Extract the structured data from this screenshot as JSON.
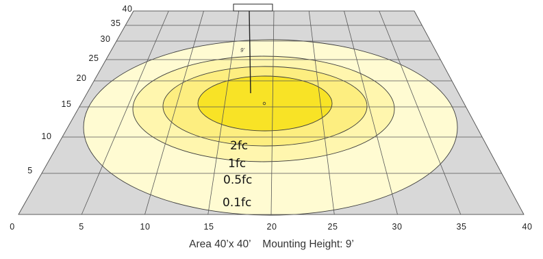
{
  "caption": {
    "area": "Area 40’x 40’",
    "mounting": "Mounting Height: 9’"
  },
  "x_ticks": [
    "0",
    "5",
    "10",
    "15",
    "20",
    "25",
    "30",
    "35",
    "40"
  ],
  "y_ticks": [
    "5",
    "10",
    "15",
    "20",
    "25",
    "30",
    "35",
    "40"
  ],
  "contours": [
    {
      "label": "0.1fc",
      "color": "#fffbd2"
    },
    {
      "label": "0.5fc",
      "color": "#fff6ae"
    },
    {
      "label": "1fc",
      "color": "#fdee80"
    },
    {
      "label": "2fc",
      "color": "#f8e326"
    }
  ],
  "fixture": {
    "height_label": "9’"
  },
  "colors": {
    "floor": "#d8d8d8",
    "grid": "#555555",
    "contour_stroke": "#3a3a3a"
  }
}
